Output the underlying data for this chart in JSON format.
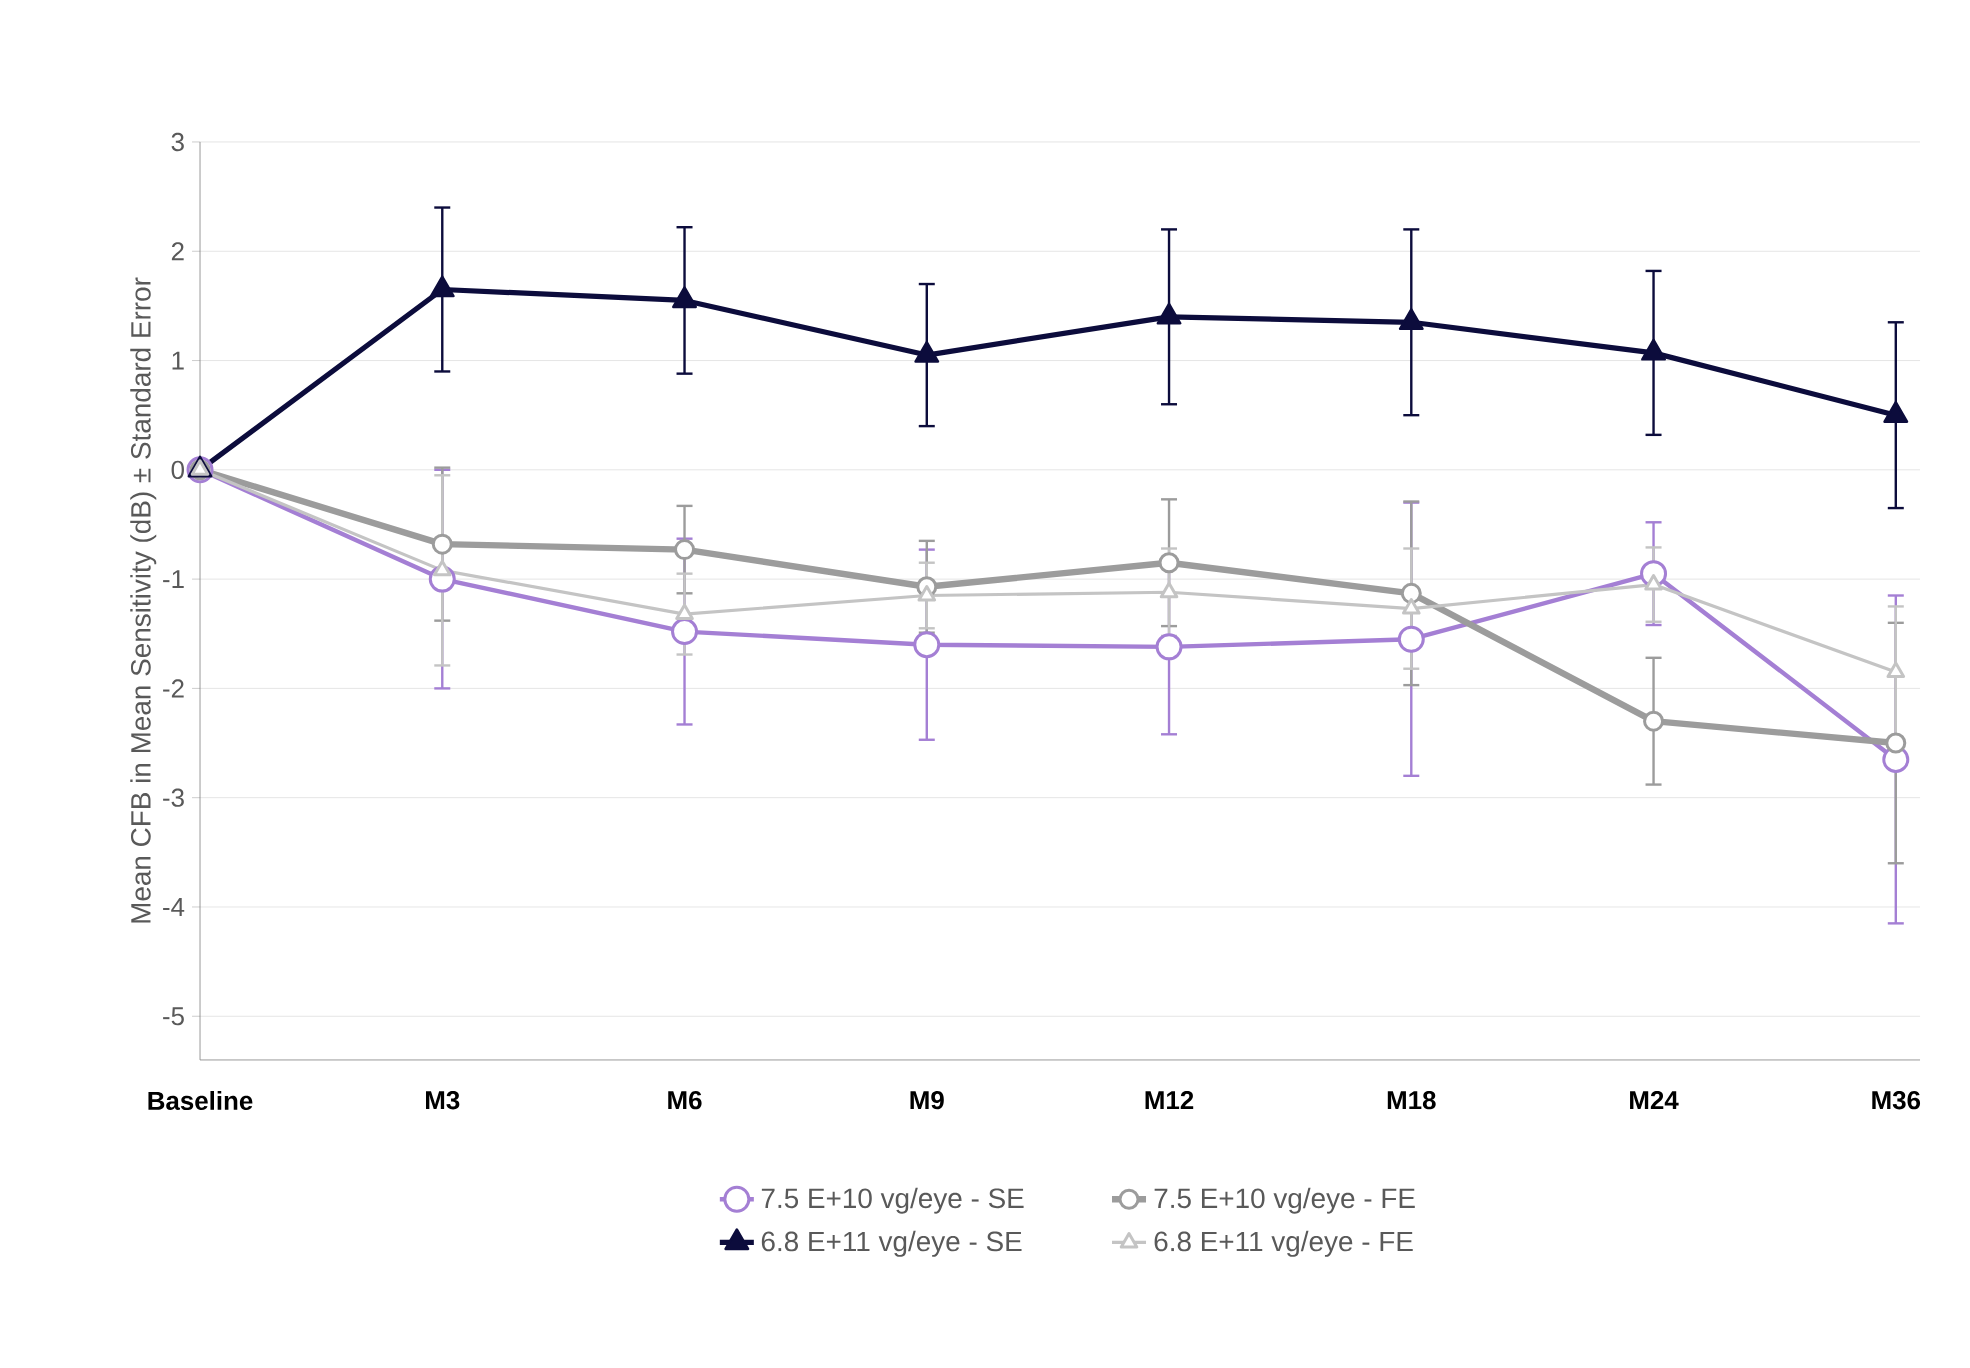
{
  "chart_data": {
    "type": "line",
    "ylabel": "Mean CFB in Mean Sensitivity (dB) ± Standard Error",
    "categories": [
      "Baseline",
      "M3",
      "M6",
      "M9",
      "M12",
      "M18",
      "M24",
      "M36"
    ],
    "ylim": [
      -5.4,
      3
    ],
    "yticks": [
      -5,
      -4,
      -3,
      -2,
      -1,
      0,
      1,
      2,
      3
    ],
    "grid": "y",
    "legend": "bottom",
    "series": [
      {
        "name": "7.5 E+10 vg/eye - SE",
        "color": "#a47fd4",
        "marker": "circle",
        "values": [
          0,
          -1.0,
          -1.48,
          -1.6,
          -1.62,
          -1.55,
          -0.95,
          -2.65
        ],
        "errors": [
          null,
          1.0,
          0.85,
          0.87,
          0.8,
          1.25,
          0.47,
          1.5
        ]
      },
      {
        "name": "7.5 E+10 vg/eye - FE",
        "color": "#9c9c9c",
        "marker": "circle",
        "values": [
          0,
          -0.68,
          -0.73,
          -1.07,
          -0.85,
          -1.13,
          -2.3,
          -2.5
        ],
        "errors": [
          null,
          0.7,
          0.4,
          0.42,
          0.58,
          0.84,
          0.58,
          1.1
        ]
      },
      {
        "name": "6.8 E+11 vg/eye - SE",
        "color": "#0c0c3c",
        "marker": "triangle",
        "values": [
          0,
          1.65,
          1.55,
          1.05,
          1.4,
          1.35,
          1.07,
          0.5
        ],
        "errors": [
          null,
          0.75,
          0.67,
          0.65,
          0.8,
          0.85,
          0.75,
          0.85
        ]
      },
      {
        "name": "6.8 E+11 vg/eye - FE",
        "color": "#c4c4c4",
        "marker": "triangle",
        "values": [
          0,
          -0.92,
          -1.32,
          -1.15,
          -1.12,
          -1.27,
          -1.05,
          -1.85
        ],
        "errors": [
          null,
          0.87,
          0.37,
          0.3,
          0.4,
          0.55,
          0.34,
          0.6
        ]
      }
    ]
  }
}
